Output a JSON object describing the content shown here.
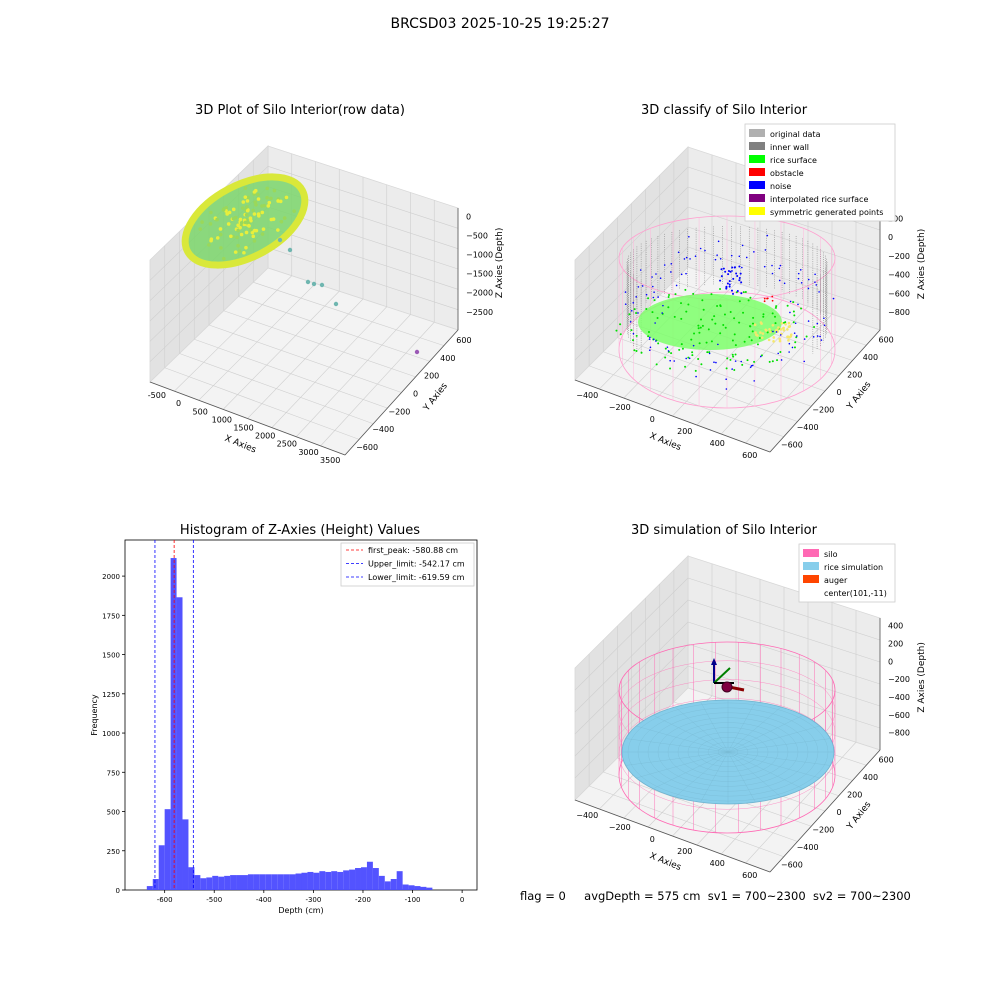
{
  "figure": {
    "title": "BRCSD03 2025-10-25 19:25:27",
    "status": {
      "flag": "flag = 0",
      "avg_depth": "avgDepth = 575 cm",
      "sv1": "sv1 = 700~2300",
      "sv2": "sv2 = 700~2300"
    }
  },
  "colors": {
    "original_data": "#b0b0b0",
    "inner_wall": "#808080",
    "rice_surface": "#00ff00",
    "obstacle": "#ff0000",
    "noise": "#0000ff",
    "interpolated_rice_surface": "#800080",
    "symmetric_generated_points": "#ffff00",
    "silo": "#ff69b4",
    "rice_simulation": "#87ceeb",
    "auger": "#ff4500",
    "histogram_bar": "#4a4aff"
  },
  "panels": {
    "raw": {
      "title": "3D Plot of Silo Interior(row data)",
      "xlabel": "X Axies",
      "ylabel": "Y Axies",
      "zlabel": "Z Axies (Depth)",
      "x_ticks": [
        "-500",
        "0",
        "500",
        "1000",
        "1500",
        "2000",
        "2500",
        "3000",
        "3500"
      ],
      "y_ticks": [
        "600",
        "400",
        "200",
        "0",
        "−200",
        "−400",
        "−600"
      ],
      "z_ticks": [
        "0",
        "−500",
        "−1000",
        "−1500",
        "−2000",
        "−2500"
      ]
    },
    "classify": {
      "title": "3D classify of Silo Interior",
      "xlabel": "X Axies",
      "ylabel": "Y Axies",
      "zlabel": "Z Axies (Depth)",
      "x_ticks": [
        "−400",
        "−200",
        "0",
        "200",
        "400",
        "600"
      ],
      "y_ticks": [
        "600",
        "400",
        "200",
        "0",
        "−200",
        "−400",
        "−600"
      ],
      "z_ticks": [
        "200",
        "0",
        "−200",
        "−400",
        "−600",
        "−800"
      ],
      "legend": [
        {
          "label": "original data",
          "color": "#b0b0b0"
        },
        {
          "label": "inner wall",
          "color": "#808080"
        },
        {
          "label": "rice surface",
          "color": "#00ff00"
        },
        {
          "label": "obstacle",
          "color": "#ff0000"
        },
        {
          "label": "noise",
          "color": "#0000ff"
        },
        {
          "label": "interpolated rice surface",
          "color": "#800080"
        },
        {
          "label": "symmetric generated points",
          "color": "#ffff00"
        }
      ]
    },
    "simulation": {
      "title": "3D simulation of Silo Interior",
      "xlabel": "X Axies",
      "ylabel": "Y Axies",
      "zlabel": "Z Axies (Depth)",
      "x_ticks": [
        "−400",
        "−200",
        "0",
        "200",
        "400",
        "600"
      ],
      "y_ticks": [
        "600",
        "400",
        "200",
        "0",
        "−200",
        "−400",
        "−600"
      ],
      "z_ticks": [
        "400",
        "200",
        "0",
        "−200",
        "−400",
        "−600",
        "−800"
      ],
      "legend": [
        {
          "label": "silo",
          "color": "#ff69b4"
        },
        {
          "label": "rice simulation",
          "color": "#87ceeb"
        },
        {
          "label": "auger",
          "color": "#ff4500"
        },
        {
          "label": "center(101,-11)",
          "color": ""
        }
      ]
    }
  },
  "chart_data": [
    {
      "type": "scatter",
      "title": "3D Plot of Silo Interior(row data)",
      "xlabel": "X Axies",
      "ylabel": "Y Axies",
      "zlabel": "Z Axies (Depth)",
      "xlim": [
        -700,
        3600
      ],
      "ylim": [
        -700,
        700
      ],
      "zlim": [
        -2900,
        100
      ]
    },
    {
      "type": "scatter",
      "title": "3D classify of Silo Interior",
      "xlabel": "X Axies",
      "ylabel": "Y Axies",
      "zlabel": "Z Axies (Depth)",
      "xlim": [
        -550,
        700
      ],
      "ylim": [
        -650,
        650
      ],
      "zlim": [
        -900,
        250
      ]
    },
    {
      "type": "bar",
      "title": "Histogram of Z-Axies (Height) Values",
      "xlabel": "Depth (cm)",
      "ylabel": "Frequency",
      "xlim": [
        -680,
        30
      ],
      "ylim": [
        0,
        2230
      ],
      "x_ticks": [
        -600,
        -500,
        -400,
        -300,
        -200,
        -100,
        0
      ],
      "y_ticks": [
        0,
        250,
        500,
        750,
        1000,
        1250,
        1500,
        1750,
        2000
      ],
      "bin_width": 12,
      "bin_start": -636,
      "values": [
        25,
        70,
        285,
        515,
        2115,
        1865,
        450,
        145,
        95,
        75,
        80,
        90,
        85,
        90,
        95,
        95,
        95,
        100,
        100,
        100,
        100,
        100,
        100,
        100,
        100,
        105,
        110,
        115,
        110,
        120,
        115,
        120,
        115,
        125,
        130,
        140,
        145,
        180,
        140,
        90,
        55,
        70,
        120,
        35,
        30,
        25,
        20,
        15
      ],
      "annotations": [
        {
          "label": "first_peak: -580.88 cm",
          "x": -580.88,
          "color": "#ff0000"
        },
        {
          "label": "Upper_limit: -542.17 cm",
          "x": -542.17,
          "color": "#0000ff"
        },
        {
          "label": "Lower_limit: -619.59 cm",
          "x": -619.59,
          "color": "#0000ff"
        }
      ]
    },
    {
      "type": "scatter",
      "title": "3D simulation of Silo Interior",
      "xlabel": "X Axies",
      "ylabel": "Y Axies",
      "zlabel": "Z Axies (Depth)",
      "xlim": [
        -550,
        700
      ],
      "ylim": [
        -650,
        650
      ],
      "zlim": [
        -900,
        450
      ]
    }
  ]
}
